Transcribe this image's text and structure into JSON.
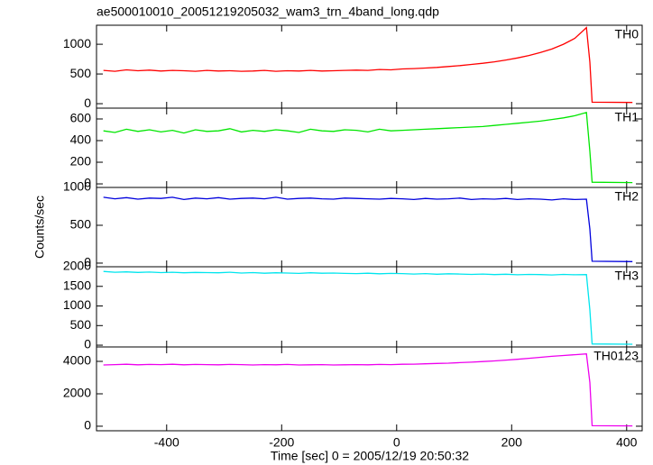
{
  "chart_data": [
    {
      "type": "line",
      "title": "ae500010010_20051219205032_wam3_trn_4band_long.qdp",
      "x": [
        -510,
        -490,
        -470,
        -450,
        -430,
        -410,
        -390,
        -370,
        -350,
        -330,
        -310,
        -290,
        -270,
        -250,
        -230,
        -210,
        -190,
        -170,
        -150,
        -130,
        -110,
        -90,
        -70,
        -50,
        -30,
        -10,
        10,
        30,
        50,
        70,
        90,
        110,
        130,
        150,
        170,
        190,
        210,
        230,
        250,
        270,
        290,
        310,
        330,
        336,
        340,
        410
      ],
      "xlim": [
        -522,
        427
      ],
      "ylim": [
        -75,
        1320
      ],
      "yticks": [
        0,
        500,
        1000
      ],
      "series": [
        {
          "name": "TH0",
          "color": "#ff0000",
          "values": [
            560,
            545,
            570,
            555,
            565,
            550,
            560,
            555,
            545,
            560,
            550,
            555,
            545,
            550,
            560,
            545,
            555,
            550,
            560,
            550,
            555,
            560,
            565,
            560,
            575,
            570,
            585,
            590,
            600,
            610,
            625,
            640,
            660,
            680,
            705,
            735,
            770,
            810,
            860,
            920,
            1000,
            1100,
            1280,
            700,
            25,
            20
          ]
        }
      ]
    },
    {
      "type": "line",
      "x": [
        -510,
        -490,
        -470,
        -450,
        -430,
        -410,
        -390,
        -370,
        -350,
        -330,
        -310,
        -290,
        -270,
        -250,
        -230,
        -210,
        -190,
        -170,
        -150,
        -130,
        -110,
        -90,
        -70,
        -50,
        -30,
        -10,
        10,
        30,
        50,
        70,
        90,
        110,
        130,
        150,
        170,
        190,
        210,
        230,
        250,
        270,
        290,
        310,
        330,
        336,
        340,
        410
      ],
      "xlim": [
        -522,
        427
      ],
      "ylim": [
        -33,
        700
      ],
      "yticks": [
        0,
        200,
        400,
        600
      ],
      "series": [
        {
          "name": "TH1",
          "color": "#00e600",
          "values": [
            490,
            475,
            505,
            485,
            500,
            480,
            495,
            470,
            500,
            485,
            490,
            510,
            480,
            495,
            485,
            500,
            490,
            475,
            505,
            490,
            485,
            500,
            495,
            480,
            505,
            490,
            495,
            500,
            505,
            510,
            515,
            520,
            525,
            530,
            540,
            550,
            560,
            570,
            580,
            595,
            610,
            630,
            660,
            300,
            15,
            12
          ]
        }
      ]
    },
    {
      "type": "line",
      "y_label": "Counts/sec",
      "x": [
        -510,
        -490,
        -470,
        -450,
        -430,
        -410,
        -390,
        -370,
        -350,
        -330,
        -310,
        -290,
        -270,
        -250,
        -230,
        -210,
        -190,
        -170,
        -150,
        -130,
        -110,
        -90,
        -70,
        -50,
        -30,
        -10,
        10,
        30,
        50,
        70,
        90,
        110,
        130,
        150,
        170,
        190,
        210,
        230,
        250,
        270,
        290,
        310,
        330,
        336,
        340,
        410
      ],
      "xlim": [
        -522,
        427
      ],
      "ylim": [
        -48,
        1000
      ],
      "yticks": [
        0,
        500,
        1000
      ],
      "series": [
        {
          "name": "TH2",
          "color": "#0000dd",
          "values": [
            870,
            850,
            865,
            845,
            860,
            855,
            870,
            840,
            860,
            850,
            865,
            845,
            855,
            860,
            850,
            870,
            845,
            855,
            860,
            850,
            845,
            860,
            855,
            850,
            845,
            855,
            850,
            840,
            855,
            845,
            850,
            860,
            840,
            850,
            845,
            855,
            840,
            850,
            845,
            835,
            850,
            840,
            845,
            450,
            25,
            20
          ]
        }
      ]
    },
    {
      "type": "line",
      "x": [
        -510,
        -490,
        -470,
        -450,
        -430,
        -410,
        -390,
        -370,
        -350,
        -330,
        -310,
        -290,
        -270,
        -250,
        -230,
        -210,
        -190,
        -170,
        -150,
        -130,
        -110,
        -90,
        -70,
        -50,
        -30,
        -10,
        10,
        30,
        50,
        70,
        90,
        110,
        130,
        150,
        170,
        190,
        210,
        230,
        250,
        270,
        290,
        310,
        330,
        336,
        340,
        410
      ],
      "xlim": [
        -522,
        427
      ],
      "ylim": [
        -45,
        2000
      ],
      "yticks": [
        0,
        500,
        1000,
        1500,
        2000
      ],
      "series": [
        {
          "name": "TH3",
          "color": "#00e5ee",
          "values": [
            1880,
            1860,
            1870,
            1855,
            1865,
            1850,
            1860,
            1845,
            1855,
            1850,
            1845,
            1860,
            1840,
            1850,
            1835,
            1845,
            1840,
            1830,
            1845,
            1835,
            1840,
            1830,
            1825,
            1835,
            1820,
            1830,
            1825,
            1815,
            1825,
            1810,
            1820,
            1815,
            1805,
            1815,
            1800,
            1810,
            1795,
            1805,
            1800,
            1790,
            1805,
            1795,
            1800,
            900,
            30,
            25
          ]
        }
      ]
    },
    {
      "type": "line",
      "x_label": "Time [sec] 0 = 2005/12/19 20:50:32",
      "x": [
        -510,
        -490,
        -470,
        -450,
        -430,
        -410,
        -390,
        -370,
        -350,
        -330,
        -310,
        -290,
        -270,
        -250,
        -230,
        -210,
        -190,
        -170,
        -150,
        -130,
        -110,
        -90,
        -70,
        -50,
        -30,
        -10,
        10,
        30,
        50,
        70,
        90,
        110,
        130,
        150,
        170,
        190,
        210,
        230,
        250,
        270,
        290,
        310,
        330,
        336,
        340,
        410
      ],
      "xlim": [
        -522,
        427
      ],
      "xticks": [
        -400,
        -200,
        0,
        200,
        400
      ],
      "ylim": [
        -280,
        4890
      ],
      "yticks": [
        0,
        2000,
        4000
      ],
      "series": [
        {
          "name": "TH0123",
          "color": "#ee00ee",
          "values": [
            3780,
            3800,
            3820,
            3790,
            3810,
            3800,
            3820,
            3790,
            3810,
            3800,
            3790,
            3810,
            3800,
            3780,
            3800,
            3790,
            3810,
            3780,
            3790,
            3800,
            3780,
            3790,
            3800,
            3790,
            3810,
            3800,
            3820,
            3830,
            3850,
            3870,
            3890,
            3920,
            3950,
            3990,
            4030,
            4080,
            4130,
            4190,
            4250,
            4310,
            4360,
            4410,
            4460,
            2700,
            30,
            20
          ]
        }
      ]
    }
  ]
}
